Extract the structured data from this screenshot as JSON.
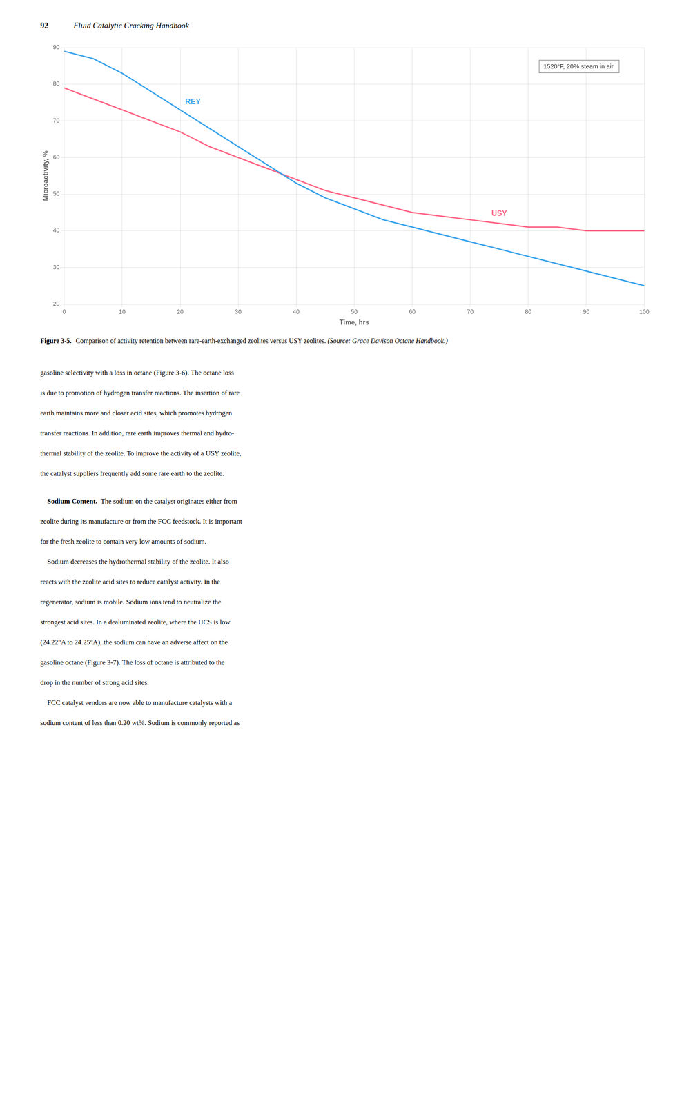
{
  "chart_data": {
    "type": "line",
    "xlabel": "Time, hrs",
    "ylabel": "Microactivity, %",
    "annotation": "1520°F, 20% steam in air.",
    "x": [
      0,
      5,
      10,
      15,
      20,
      25,
      30,
      35,
      40,
      45,
      50,
      55,
      60,
      65,
      70,
      75,
      80,
      85,
      90,
      95,
      100
    ],
    "series": [
      {
        "name": "REY",
        "values": [
          89,
          87,
          83,
          78,
          73,
          68,
          63,
          58,
          53,
          49,
          46,
          43,
          41,
          39,
          37,
          35,
          33,
          31,
          29,
          27,
          25
        ]
      },
      {
        "name": "USY",
        "values": [
          79,
          76,
          73,
          70,
          67,
          63,
          60,
          57,
          54,
          51,
          49,
          47,
          45,
          44,
          43,
          42,
          41,
          41,
          40,
          40,
          40
        ]
      }
    ],
    "xlim": [
      0,
      100
    ],
    "ylim": [
      20,
      90
    ],
    "xticks": [
      0,
      10,
      20,
      30,
      40,
      50,
      60,
      70,
      80,
      90,
      100
    ],
    "yticks": [
      20,
      30,
      40,
      50,
      60,
      70,
      80,
      90
    ],
    "grid": true
  },
  "page_header": {
    "number": "92",
    "title": "Fluid Catalytic Cracking Handbook"
  },
  "caption": {
    "bold": "Figure 3-5.",
    "text": "Comparison of activity retention between rare-earth-exchanged zeolites versus USY zeolites.",
    "italic": "(Source: Grace Davison Octane Handbook.)"
  },
  "body": [
    [
      "gasoline selectivity with a loss in octane (Figure 3-6). The octane loss",
      "is due to promotion of hydrogen transfer reactions. The insertion of rare",
      "earth maintains more and closer acid sites, which promotes hydrogen",
      "transfer reactions. In addition, rare earth improves thermal and hydro-",
      "thermal stability of the zeolite. To improve the activity of a USY zeolite,",
      "the catalyst suppliers frequently add some rare earth to the zeolite."
    ],
    [
      {
        "bold": "Sodium Content.",
        "text": "The sodium on the catalyst originates either from"
      },
      "zeolite during its manufacture or from the FCC feedstock. It is important",
      "for the fresh zeolite to contain very low amounts of sodium.",
      "    Sodium decreases the hydrothermal stability of the zeolite. It also",
      "reacts with the zeolite acid sites to reduce catalyst activity. In the",
      "regenerator, sodium is mobile. Sodium ions tend to neutralize the",
      "strongest acid sites. In a dealuminated zeolite, where the UCS is low",
      "(24.22°A to 24.25°A), the sodium can have an adverse affect on the",
      "gasoline octane (Figure 3-7). The loss of octane is attributed to the",
      "drop in the number of strong acid sites.",
      "    FCC catalyst vendors are now able to manufacture catalysts with a",
      "sodium content of less than 0.20 wt%. Sodium is commonly reported as"
    ]
  ]
}
